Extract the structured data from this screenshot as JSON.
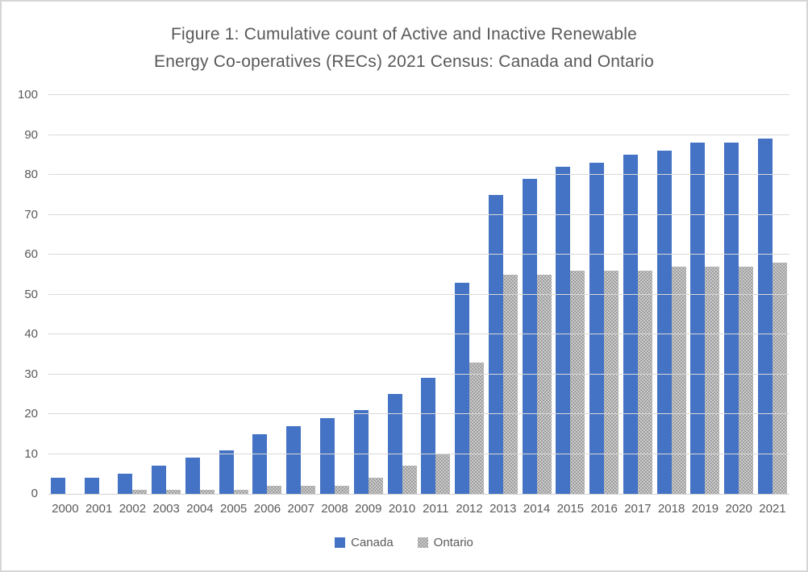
{
  "header": {
    "line1": "Figure 1: Cumulative count of Active and Inactive Renewable",
    "line2": "Energy Co-operatives (RECs) 2021 Census: Canada and Ontario"
  },
  "chart_data": {
    "type": "bar",
    "title": "Figure 1: Cumulative count of Active and Inactive Renewable Energy Co-operatives (RECs) 2021 Census: Canada and Ontario",
    "categories": [
      "2000",
      "2001",
      "2002",
      "2003",
      "2004",
      "2005",
      "2006",
      "2007",
      "2008",
      "2009",
      "2010",
      "2011",
      "2012",
      "2013",
      "2014",
      "2015",
      "2016",
      "2017",
      "2018",
      "2019",
      "2020",
      "2021"
    ],
    "series": [
      {
        "name": "Canada",
        "color": "#4472C4",
        "fill": "solid",
        "values": [
          4,
          4,
          5,
          7,
          9,
          11,
          15,
          17,
          19,
          21,
          25,
          29,
          53,
          75,
          79,
          82,
          83,
          85,
          86,
          88,
          88,
          89
        ]
      },
      {
        "name": "Ontario",
        "color": "#ABABAB",
        "fill": "dotted-pattern",
        "values": [
          0,
          0,
          1,
          1,
          1,
          1,
          2,
          2,
          2,
          4,
          7,
          10,
          33,
          55,
          55,
          56,
          56,
          56,
          57,
          57,
          57,
          58
        ]
      }
    ],
    "xlabel": "",
    "ylabel": "",
    "ylim": [
      0,
      100
    ],
    "yticks": [
      0,
      10,
      20,
      30,
      40,
      50,
      60,
      70,
      80,
      90,
      100
    ],
    "grid": true,
    "gridline_color": "#D9D9D9",
    "text_color": "#595959",
    "legend_position": "bottom"
  }
}
